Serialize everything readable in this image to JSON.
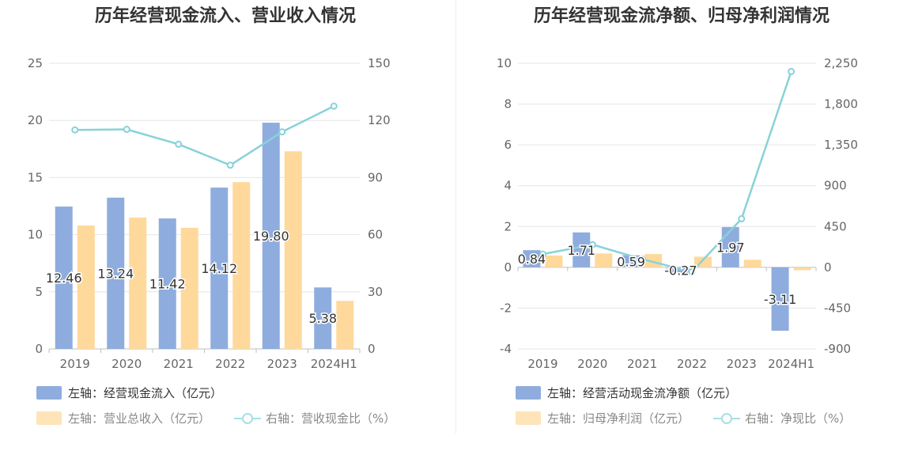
{
  "colors": {
    "bar1": "#8eadde",
    "bar2": "#fed99b",
    "line": "#88d2d9",
    "grid": "#e6e6e6",
    "axis_text": "#666666"
  },
  "chart_data": [
    {
      "type": "bar",
      "title": "历年经营现金流入、营业收入情况",
      "categories": [
        "2019",
        "2020",
        "2021",
        "2022",
        "2023",
        "2024H1"
      ],
      "y_left": {
        "ticks": [
          "0",
          "5",
          "10",
          "15",
          "20",
          "25"
        ],
        "min": 0,
        "max": 25
      },
      "y_right": {
        "ticks": [
          "0",
          "30",
          "60",
          "90",
          "120",
          "150"
        ],
        "min": 0,
        "max": 150
      },
      "series": [
        {
          "name": "左轴：经营现金流入（亿元）",
          "type": "bar",
          "axis": "left",
          "values": [
            12.46,
            13.24,
            11.42,
            14.12,
            19.8,
            5.38
          ],
          "labels": [
            "12.46",
            "13.24",
            "11.42",
            "14.12",
            "19.80",
            "5.38"
          ]
        },
        {
          "name": "左轴：营业总收入（亿元）",
          "type": "bar",
          "axis": "left",
          "values": [
            10.8,
            11.5,
            10.6,
            14.6,
            17.3,
            4.2
          ]
        },
        {
          "name": "右轴：营收现金比（%）",
          "type": "line",
          "axis": "right",
          "values": [
            115,
            115.3,
            107.5,
            96.5,
            114,
            127.5
          ]
        }
      ]
    },
    {
      "type": "bar",
      "title": "历年经营现金流净额、归母净利润情况",
      "categories": [
        "2019",
        "2020",
        "2021",
        "2022",
        "2023",
        "2024H1"
      ],
      "y_left": {
        "ticks": [
          "-4",
          "-2",
          "0",
          "2",
          "4",
          "6",
          "8",
          "10"
        ],
        "min": -4,
        "max": 10
      },
      "y_right": {
        "ticks": [
          "-900",
          "-450",
          "0",
          "450",
          "900",
          "1,350",
          "1,800",
          "2,250"
        ],
        "min": -900,
        "max": 2250
      },
      "series": [
        {
          "name": "左轴：经营活动现金流净额（亿元）",
          "type": "bar",
          "axis": "left",
          "values": [
            0.84,
            1.71,
            0.59,
            -0.27,
            1.97,
            -3.11
          ],
          "labels": [
            "0.84",
            "1.71",
            "0.59",
            "-0.27",
            "1.97",
            "-3.11"
          ]
        },
        {
          "name": "左轴：归母净利润（亿元）",
          "type": "bar",
          "axis": "left",
          "values": [
            0.58,
            0.68,
            0.65,
            0.52,
            0.37,
            -0.14
          ]
        },
        {
          "name": "右轴：净现比（%）",
          "type": "line",
          "axis": "right",
          "values": [
            145,
            250,
            90,
            -50,
            535,
            2160
          ]
        }
      ]
    }
  ]
}
